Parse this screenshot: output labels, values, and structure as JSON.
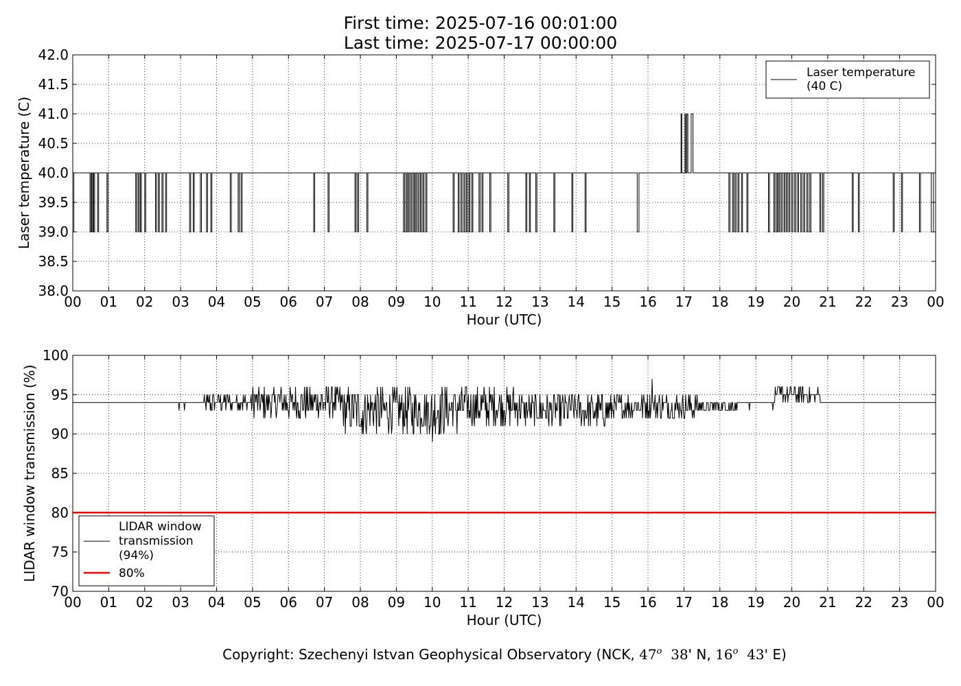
{
  "figure": {
    "title_line1": "First time: 2025-07-16 00:01:00",
    "title_line2": "Last time: 2025-07-17 00:00:00",
    "copyright_prefix": "Copyright: Szechenyi Istvan Geophysical Observatory (NCK, ",
    "lat_deg": "47",
    "lat_min": "38",
    "lat_hemi": "' N, ",
    "lon_deg": "16",
    "lon_min": "43",
    "lon_hemi": "' E)",
    "degree_mark": "o"
  },
  "chart_data": [
    {
      "type": "line",
      "xlabel": "Hour (UTC)",
      "ylabel": "Laser temperature (C)",
      "xlim": [
        0,
        24
      ],
      "ylim": [
        38.0,
        42.0
      ],
      "x_tick_labels": [
        "00",
        "01",
        "02",
        "03",
        "04",
        "05",
        "06",
        "07",
        "08",
        "09",
        "10",
        "11",
        "12",
        "13",
        "14",
        "15",
        "16",
        "17",
        "18",
        "19",
        "20",
        "21",
        "22",
        "23",
        "00"
      ],
      "y_tick_labels": [
        "38.0",
        "38.5",
        "39.0",
        "39.5",
        "40.0",
        "40.5",
        "41.0",
        "41.5",
        "42.0"
      ],
      "grid": true,
      "legend_position": "top-right",
      "baseline": 40.0,
      "series": [
        {
          "name": "Laser temperature (40 C)",
          "legend_lines": [
            "Laser temperature",
            "(40 C)"
          ],
          "color": "#000000",
          "excursions": [
            {
              "start": 0.0,
              "end": 0.03,
              "value": 39.0
            },
            {
              "start": 0.48,
              "end": 0.51,
              "value": 39.0
            },
            {
              "start": 0.53,
              "end": 0.56,
              "value": 39.0
            },
            {
              "start": 0.58,
              "end": 0.61,
              "value": 39.0
            },
            {
              "start": 0.69,
              "end": 0.72,
              "value": 39.0
            },
            {
              "start": 0.95,
              "end": 0.98,
              "value": 39.0
            },
            {
              "start": 1.75,
              "end": 1.78,
              "value": 39.0
            },
            {
              "start": 1.82,
              "end": 1.85,
              "value": 39.0
            },
            {
              "start": 1.88,
              "end": 1.91,
              "value": 39.0
            },
            {
              "start": 2.0,
              "end": 2.03,
              "value": 39.0
            },
            {
              "start": 2.3,
              "end": 2.33,
              "value": 39.0
            },
            {
              "start": 2.38,
              "end": 2.41,
              "value": 39.0
            },
            {
              "start": 2.48,
              "end": 2.51,
              "value": 39.0
            },
            {
              "start": 2.58,
              "end": 2.61,
              "value": 39.0
            },
            {
              "start": 3.25,
              "end": 3.28,
              "value": 39.0
            },
            {
              "start": 3.35,
              "end": 3.38,
              "value": 39.0
            },
            {
              "start": 3.55,
              "end": 3.58,
              "value": 39.0
            },
            {
              "start": 3.72,
              "end": 3.75,
              "value": 39.0
            },
            {
              "start": 3.84,
              "end": 3.87,
              "value": 39.0
            },
            {
              "start": 4.38,
              "end": 4.41,
              "value": 39.0
            },
            {
              "start": 4.6,
              "end": 4.63,
              "value": 39.0
            },
            {
              "start": 4.68,
              "end": 4.71,
              "value": 39.0
            },
            {
              "start": 6.7,
              "end": 6.73,
              "value": 39.0
            },
            {
              "start": 7.1,
              "end": 7.13,
              "value": 39.0
            },
            {
              "start": 7.85,
              "end": 7.88,
              "value": 39.0
            },
            {
              "start": 7.92,
              "end": 7.95,
              "value": 39.0
            },
            {
              "start": 8.18,
              "end": 8.21,
              "value": 39.0
            },
            {
              "start": 9.2,
              "end": 9.23,
              "value": 39.0
            },
            {
              "start": 9.27,
              "end": 9.3,
              "value": 39.0
            },
            {
              "start": 9.33,
              "end": 9.36,
              "value": 39.0
            },
            {
              "start": 9.4,
              "end": 9.43,
              "value": 39.0
            },
            {
              "start": 9.47,
              "end": 9.5,
              "value": 39.0
            },
            {
              "start": 9.53,
              "end": 9.56,
              "value": 39.0
            },
            {
              "start": 9.6,
              "end": 9.63,
              "value": 39.0
            },
            {
              "start": 9.67,
              "end": 9.7,
              "value": 39.0
            },
            {
              "start": 9.74,
              "end": 9.77,
              "value": 39.0
            },
            {
              "start": 9.82,
              "end": 9.85,
              "value": 39.0
            },
            {
              "start": 10.58,
              "end": 10.61,
              "value": 39.0
            },
            {
              "start": 10.72,
              "end": 10.75,
              "value": 39.0
            },
            {
              "start": 10.8,
              "end": 10.83,
              "value": 39.0
            },
            {
              "start": 10.88,
              "end": 10.91,
              "value": 39.0
            },
            {
              "start": 10.95,
              "end": 10.98,
              "value": 39.0
            },
            {
              "start": 11.02,
              "end": 11.05,
              "value": 39.0
            },
            {
              "start": 11.1,
              "end": 11.13,
              "value": 39.0
            },
            {
              "start": 11.3,
              "end": 11.33,
              "value": 39.0
            },
            {
              "start": 11.38,
              "end": 11.41,
              "value": 39.0
            },
            {
              "start": 11.6,
              "end": 11.63,
              "value": 39.0
            },
            {
              "start": 12.1,
              "end": 12.13,
              "value": 39.0
            },
            {
              "start": 12.6,
              "end": 12.63,
              "value": 39.0
            },
            {
              "start": 12.7,
              "end": 12.73,
              "value": 39.0
            },
            {
              "start": 12.88,
              "end": 12.91,
              "value": 39.0
            },
            {
              "start": 13.38,
              "end": 13.41,
              "value": 39.0
            },
            {
              "start": 13.88,
              "end": 13.91,
              "value": 39.0
            },
            {
              "start": 14.25,
              "end": 14.28,
              "value": 39.0
            },
            {
              "start": 15.7,
              "end": 15.75,
              "value": 39.0
            },
            {
              "start": 16.92,
              "end": 16.94,
              "value": 41.0
            },
            {
              "start": 17.03,
              "end": 17.05,
              "value": 41.0
            },
            {
              "start": 17.08,
              "end": 17.11,
              "value": 41.0
            },
            {
              "start": 17.2,
              "end": 17.25,
              "value": 41.0
            },
            {
              "start": 18.25,
              "end": 18.28,
              "value": 39.0
            },
            {
              "start": 18.35,
              "end": 18.38,
              "value": 39.0
            },
            {
              "start": 18.42,
              "end": 18.45,
              "value": 39.0
            },
            {
              "start": 18.5,
              "end": 18.53,
              "value": 39.0
            },
            {
              "start": 18.6,
              "end": 18.63,
              "value": 39.0
            },
            {
              "start": 18.75,
              "end": 18.78,
              "value": 39.0
            },
            {
              "start": 19.35,
              "end": 19.38,
              "value": 39.0
            },
            {
              "start": 19.5,
              "end": 19.53,
              "value": 39.0
            },
            {
              "start": 19.57,
              "end": 19.6,
              "value": 39.0
            },
            {
              "start": 19.63,
              "end": 19.66,
              "value": 39.0
            },
            {
              "start": 19.7,
              "end": 19.73,
              "value": 39.0
            },
            {
              "start": 19.78,
              "end": 19.81,
              "value": 39.0
            },
            {
              "start": 19.85,
              "end": 19.88,
              "value": 39.0
            },
            {
              "start": 19.92,
              "end": 19.95,
              "value": 39.0
            },
            {
              "start": 20.0,
              "end": 20.03,
              "value": 39.0
            },
            {
              "start": 20.08,
              "end": 20.11,
              "value": 39.0
            },
            {
              "start": 20.16,
              "end": 20.19,
              "value": 39.0
            },
            {
              "start": 20.25,
              "end": 20.28,
              "value": 39.0
            },
            {
              "start": 20.33,
              "end": 20.36,
              "value": 39.0
            },
            {
              "start": 20.42,
              "end": 20.45,
              "value": 39.0
            },
            {
              "start": 20.5,
              "end": 20.53,
              "value": 39.0
            },
            {
              "start": 20.78,
              "end": 20.81,
              "value": 39.0
            },
            {
              "start": 20.86,
              "end": 20.89,
              "value": 39.0
            },
            {
              "start": 21.68,
              "end": 21.71,
              "value": 39.0
            },
            {
              "start": 21.85,
              "end": 21.88,
              "value": 39.0
            },
            {
              "start": 22.82,
              "end": 22.85,
              "value": 39.0
            },
            {
              "start": 23.05,
              "end": 23.08,
              "value": 39.0
            },
            {
              "start": 23.55,
              "end": 23.58,
              "value": 39.0
            },
            {
              "start": 23.88,
              "end": 23.94,
              "value": 39.0
            }
          ]
        }
      ]
    },
    {
      "type": "line",
      "xlabel": "Hour (UTC)",
      "ylabel": "LIDAR window transmission (%)",
      "xlim": [
        0,
        24
      ],
      "ylim": [
        70,
        100
      ],
      "x_tick_labels": [
        "00",
        "01",
        "02",
        "03",
        "04",
        "05",
        "06",
        "07",
        "08",
        "09",
        "10",
        "11",
        "12",
        "13",
        "14",
        "15",
        "16",
        "17",
        "18",
        "19",
        "20",
        "21",
        "22",
        "23",
        "00"
      ],
      "y_tick_labels": [
        "70",
        "75",
        "80",
        "85",
        "90",
        "95",
        "100"
      ],
      "grid": true,
      "legend_position": "bottom-left",
      "series": [
        {
          "name": "LIDAR window transmission (94%)",
          "legend_lines": [
            "LIDAR window",
            "transmission",
            "(94%)"
          ],
          "color": "#000000",
          "baseline": 94,
          "noisy_ranges": [
            {
              "start": 3.6,
              "end": 5.0,
              "low": 93,
              "high": 95
            },
            {
              "start": 5.0,
              "end": 7.5,
              "low": 92,
              "high": 96
            },
            {
              "start": 7.5,
              "end": 10.5,
              "low": 90,
              "high": 96
            },
            {
              "start": 10.5,
              "end": 12.5,
              "low": 91,
              "high": 96
            },
            {
              "start": 12.5,
              "end": 15.0,
              "low": 91,
              "high": 95
            },
            {
              "start": 15.0,
              "end": 17.5,
              "low": 92,
              "high": 95
            },
            {
              "start": 17.5,
              "end": 18.5,
              "low": 93,
              "high": 94
            },
            {
              "start": 19.5,
              "end": 20.8,
              "low": 94,
              "high": 96
            }
          ],
          "spikes": [
            {
              "x": 2.95,
              "value": 93
            },
            {
              "x": 3.1,
              "value": 93
            },
            {
              "x": 3.65,
              "value": 95
            },
            {
              "x": 8.05,
              "value": 90
            },
            {
              "x": 10.0,
              "value": 89
            },
            {
              "x": 10.68,
              "value": 90
            },
            {
              "x": 16.12,
              "value": 97
            },
            {
              "x": 19.48,
              "value": 93
            },
            {
              "x": 18.82,
              "value": 93
            }
          ]
        },
        {
          "name": "80%",
          "legend_lines": [
            "80%"
          ],
          "color": "#ff0000",
          "values": [
            80,
            80
          ],
          "x": [
            0,
            24
          ]
        }
      ]
    }
  ]
}
